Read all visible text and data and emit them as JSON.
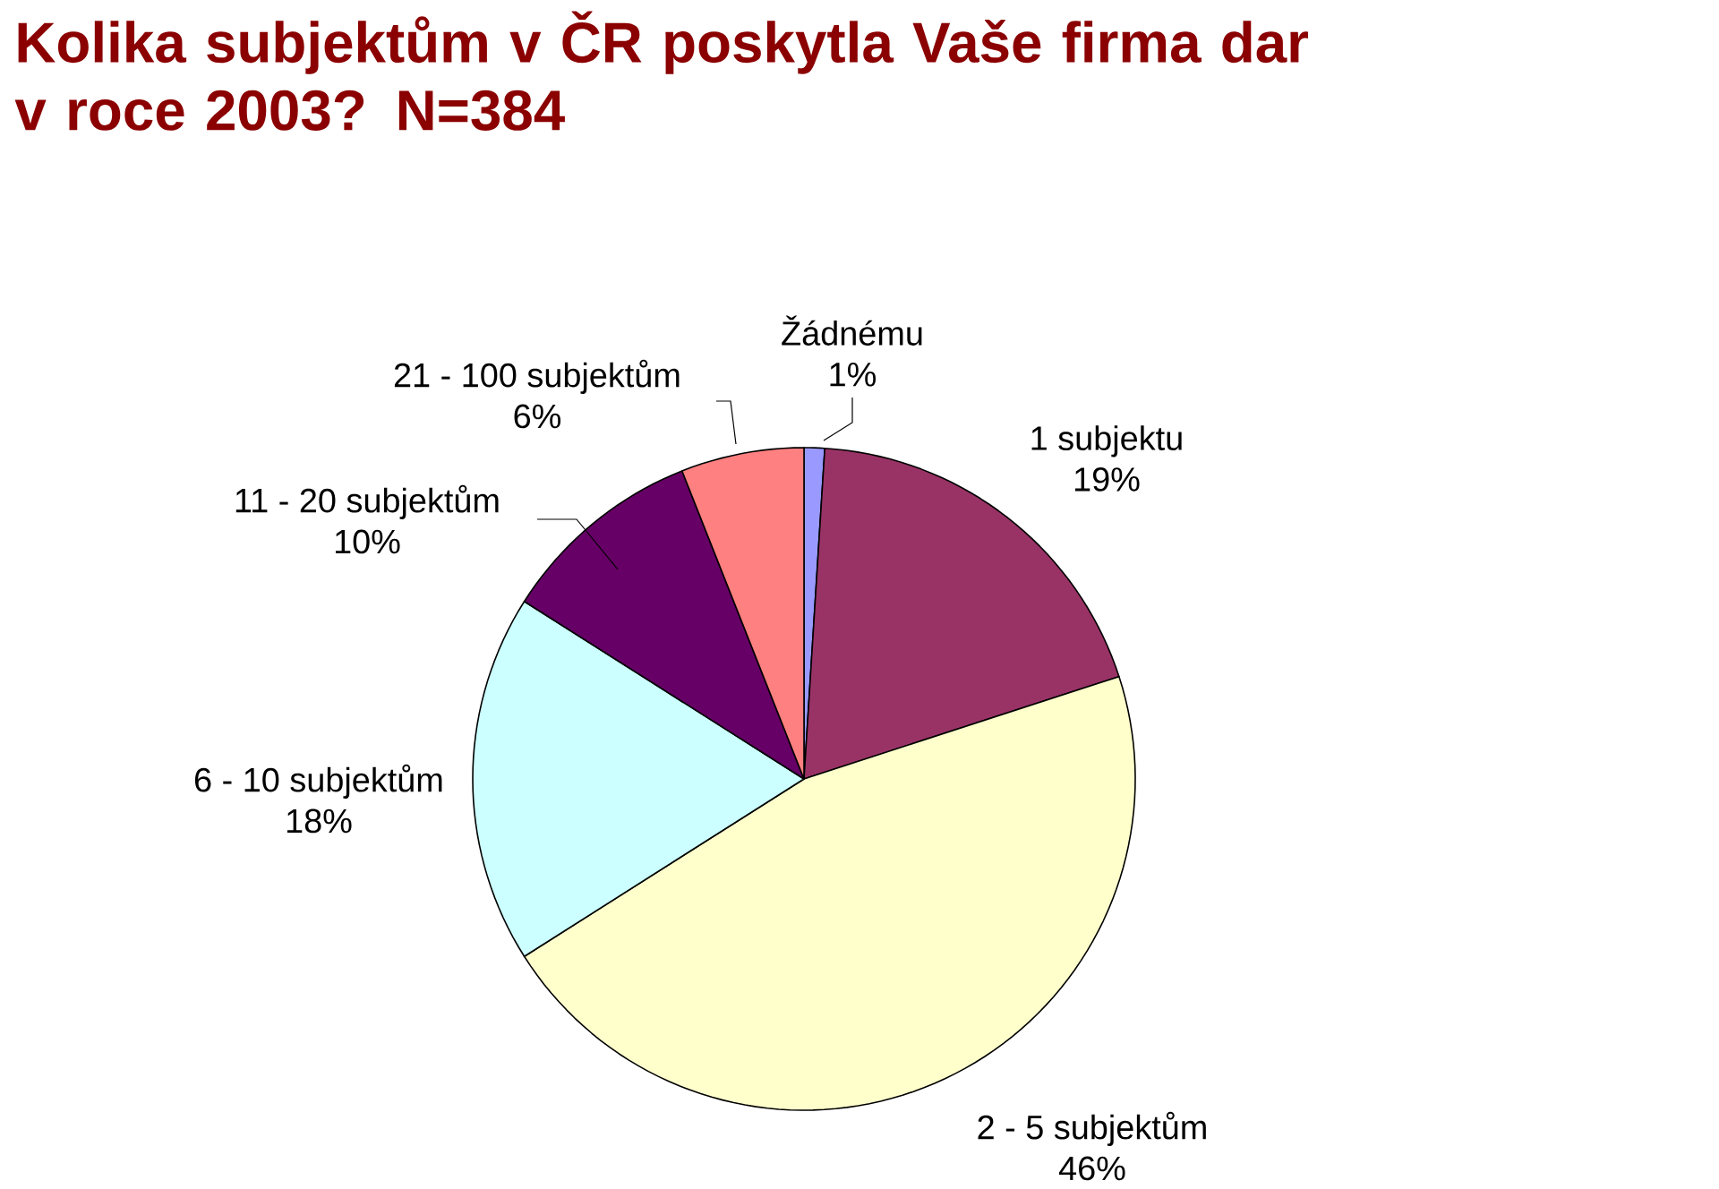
{
  "chart_data": {
    "type": "pie",
    "title": "Kolika subjektům v ČR poskytla Vaše firma dar v roce 2003? N=384",
    "categories": [
      "Žádnému",
      "1 subjektu",
      "2 - 5 subjektům",
      "6 - 10 subjektům",
      "11 - 20 subjektům",
      "21 - 100 subjektům"
    ],
    "values": [
      1,
      19,
      46,
      18,
      10,
      6
    ],
    "value_labels": [
      "1%",
      "19%",
      "46%",
      "18%",
      "10%",
      "6%"
    ],
    "colors": [
      "#9999ff",
      "#993366",
      "#ffffcc",
      "#ccffff",
      "#660066",
      "#ff8080"
    ]
  }
}
